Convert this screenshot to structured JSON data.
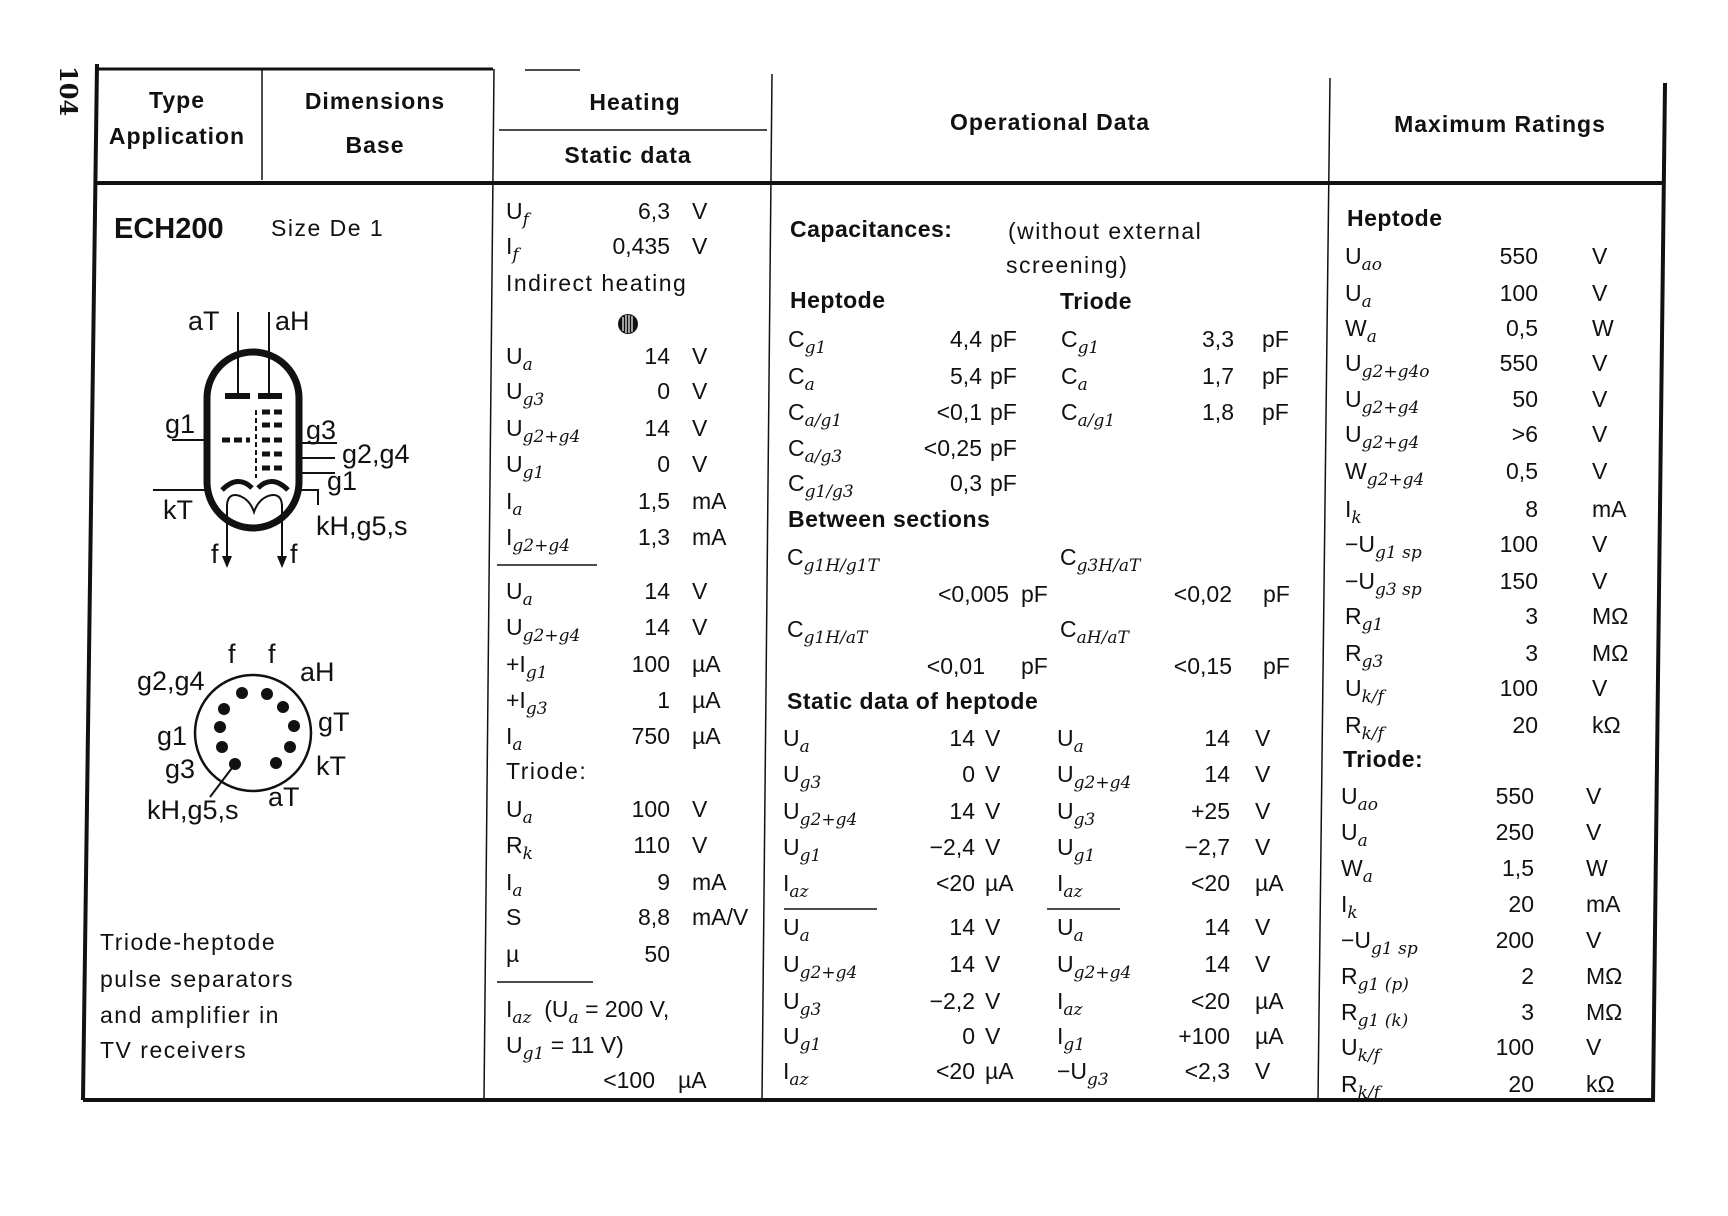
{
  "page_number": "104",
  "headers": {
    "type": "Type",
    "application": "Application",
    "dimensions": "Dimensions",
    "base": "Base",
    "heating": "Heating",
    "static_data": "Static data",
    "operational": "Operational Data",
    "maximum": "Maximum Ratings"
  },
  "tube": {
    "type": "ECH200",
    "size": "Size De 1",
    "application_lines": [
      "Triode-heptode",
      "pulse separators",
      "and amplifier in",
      "TV receivers"
    ],
    "symbol_labels": {
      "aT": "aT",
      "aH": "aH",
      "g1_left": "g1",
      "g3": "g3",
      "g2g4": "g2,g4",
      "g1_right": "g1",
      "kT": "kT",
      "kH": "kH,g5,s",
      "f1": "f",
      "f2": "f"
    },
    "base_labels": {
      "f1": "f",
      "f2": "f",
      "aH": "aH",
      "gT": "gT",
      "kT": "kT",
      "aT": "aT",
      "kH": "kH,g5,s",
      "g3": "g3",
      "g1": "g1",
      "g2g4": "g2,g4"
    }
  },
  "heating": {
    "rows": [
      {
        "label": "U",
        "sub": "f",
        "value": "6,3",
        "unit": "V"
      },
      {
        "label": "I",
        "sub": "f",
        "value": "0,435",
        "unit": "V"
      },
      {
        "note": "Indirect heating"
      },
      {
        "label": "U",
        "sub": "a",
        "value": "14",
        "unit": "V"
      },
      {
        "label": "U",
        "sub": "g3",
        "value": "0",
        "unit": "V"
      },
      {
        "label": "U",
        "sub": "g2+g4",
        "value": "14",
        "unit": "V"
      },
      {
        "label": "U",
        "sub": "g1",
        "value": "0",
        "unit": "V"
      },
      {
        "label": "I",
        "sub": "a",
        "value": "1,5",
        "unit": "mA"
      },
      {
        "label": "I",
        "sub": "g2+g4",
        "value": "1,3",
        "unit": "mA"
      },
      {
        "label": "U",
        "sub": "a",
        "value": "14",
        "unit": "V"
      },
      {
        "label": "U",
        "sub": "g2+g4",
        "value": "14",
        "unit": "V"
      },
      {
        "label": "+I",
        "sub": "g1",
        "value": "100",
        "unit": "µA"
      },
      {
        "label": "+I",
        "sub": "g3",
        "value": "1",
        "unit": "µA"
      },
      {
        "label": "I",
        "sub": "a",
        "value": "750",
        "unit": "µA"
      },
      {
        "note": "Triode:"
      },
      {
        "label": "U",
        "sub": "a",
        "value": "100",
        "unit": "V"
      },
      {
        "label": "R",
        "sub": "k",
        "value": "110",
        "unit": "V"
      },
      {
        "label": "I",
        "sub": "a",
        "value": "9",
        "unit": "mA"
      },
      {
        "label": "S",
        "sub": "",
        "value": "8,8",
        "unit": "mA/V"
      },
      {
        "label": "µ",
        "sub": "",
        "value": "50",
        "unit": ""
      }
    ],
    "iaz": {
      "label": "I",
      "sub": "az",
      "cond1": "(U",
      "cond1_sub": "a",
      "cond1_rest": " = 200 V,",
      "cond2": "U",
      "cond2_sub": "g1",
      "cond2_rest": " = 11 V)",
      "value": "<100",
      "unit": "µA"
    },
    "icon": "base-symbol-icon"
  },
  "operational": {
    "capacitances_title": "Capacitances:",
    "capacitances_note1": "(without external",
    "capacitances_note2": "screening)",
    "heptode_title": "Heptode",
    "triode_title": "Triode",
    "heptode_caps": [
      {
        "label": "C",
        "sub": "g1",
        "value": "4,4",
        "unit": "pF"
      },
      {
        "label": "C",
        "sub": "a",
        "value": "5,4",
        "unit": "pF"
      },
      {
        "label": "C",
        "sub": "a/g1",
        "value": "<0,1",
        "unit": "pF"
      },
      {
        "label": "C",
        "sub": "a/g3",
        "value": "<0,25",
        "unit": "pF"
      },
      {
        "label": "C",
        "sub": "g1/g3",
        "value": "0,3",
        "unit": "pF"
      }
    ],
    "triode_caps": [
      {
        "label": "C",
        "sub": "g1",
        "value": "3,3",
        "unit": "pF"
      },
      {
        "label": "C",
        "sub": "a",
        "value": "1,7",
        "unit": "pF"
      },
      {
        "label": "C",
        "sub": "a/g1",
        "value": "1,8",
        "unit": "pF"
      }
    ],
    "between_title": "Between sections",
    "between": [
      {
        "label": "C",
        "sub": "g1H/g1T",
        "value": "<0,005",
        "unit": "pF"
      },
      {
        "label": "C",
        "sub": "g3H/aT",
        "value": "<0,02",
        "unit": "pF"
      },
      {
        "label": "C",
        "sub": "g1H/aT",
        "value": "<0,01",
        "unit": "pF"
      },
      {
        "label": "C",
        "sub": "aH/aT",
        "value": "<0,15",
        "unit": "pF"
      }
    ],
    "static_title": "Static data of heptode",
    "static_left": [
      {
        "label": "U",
        "sub": "a",
        "value": "14",
        "unit": "V"
      },
      {
        "label": "U",
        "sub": "g3",
        "value": "0",
        "unit": "V"
      },
      {
        "label": "U",
        "sub": "g2+g4",
        "value": "14",
        "unit": "V"
      },
      {
        "label": "U",
        "sub": "g1",
        "value": "−2,4",
        "unit": "V"
      },
      {
        "label": "I",
        "sub": "az",
        "value": "<20",
        "unit": "µA"
      },
      {
        "label": "U",
        "sub": "a",
        "value": "14",
        "unit": "V"
      },
      {
        "label": "U",
        "sub": "g2+g4",
        "value": "14",
        "unit": "V"
      },
      {
        "label": "U",
        "sub": "g3",
        "value": "−2,2",
        "unit": "V"
      },
      {
        "label": "U",
        "sub": "g1",
        "value": "0",
        "unit": "V"
      },
      {
        "label": "I",
        "sub": "az",
        "value": "<20",
        "unit": "µA"
      }
    ],
    "static_right": [
      {
        "label": "U",
        "sub": "a",
        "value": "14",
        "unit": "V"
      },
      {
        "label": "U",
        "sub": "g2+g4",
        "value": "14",
        "unit": "V"
      },
      {
        "label": "U",
        "sub": "g3",
        "value": "+25",
        "unit": "V"
      },
      {
        "label": "U",
        "sub": "g1",
        "value": "−2,7",
        "unit": "V"
      },
      {
        "label": "I",
        "sub": "az",
        "value": "<20",
        "unit": "µA"
      },
      {
        "label": "U",
        "sub": "a",
        "value": "14",
        "unit": "V"
      },
      {
        "label": "U",
        "sub": "g2+g4",
        "value": "14",
        "unit": "V"
      },
      {
        "label": "I",
        "sub": "az",
        "value": "<20",
        "unit": "µA"
      },
      {
        "label": "I",
        "sub": "g1",
        "value": "+100",
        "unit": "µA"
      },
      {
        "label": "−U",
        "sub": "g3",
        "value": "<2,3",
        "unit": "V"
      }
    ]
  },
  "maximum": {
    "heptode_title": "Heptode",
    "heptode": [
      {
        "label": "U",
        "sub": "ao",
        "value": "550",
        "unit": "V"
      },
      {
        "label": "U",
        "sub": "a",
        "value": "100",
        "unit": "V"
      },
      {
        "label": "W",
        "sub": "a",
        "value": "0,5",
        "unit": "W"
      },
      {
        "label": "U",
        "sub": "g2+g4o",
        "value": "550",
        "unit": "V"
      },
      {
        "label": "U",
        "sub": "g2+g4",
        "value": "50",
        "unit": "V"
      },
      {
        "label": "U",
        "sub": "g2+g4",
        "value": ">6",
        "unit": "V"
      },
      {
        "label": "W",
        "sub": "g2+g4",
        "value": "0,5",
        "unit": "V"
      },
      {
        "label": "I",
        "sub": "k",
        "value": "8",
        "unit": "mA"
      },
      {
        "label": "−U",
        "sub": "g1 sp",
        "value": "100",
        "unit": "V"
      },
      {
        "label": "−U",
        "sub": "g3 sp",
        "value": "150",
        "unit": "V"
      },
      {
        "label": "R",
        "sub": "g1",
        "value": "3",
        "unit": "MΩ"
      },
      {
        "label": "R",
        "sub": "g3",
        "value": "3",
        "unit": "MΩ"
      },
      {
        "label": "U",
        "sub": "k/f",
        "value": "100",
        "unit": "V"
      },
      {
        "label": "R",
        "sub": "k/f",
        "value": "20",
        "unit": "kΩ"
      }
    ],
    "triode_title": "Triode:",
    "triode": [
      {
        "label": "U",
        "sub": "ao",
        "value": "550",
        "unit": "V"
      },
      {
        "label": "U",
        "sub": "a",
        "value": "250",
        "unit": "V"
      },
      {
        "label": "W",
        "sub": "a",
        "value": "1,5",
        "unit": "W"
      },
      {
        "label": "I",
        "sub": "k",
        "value": "20",
        "unit": "mA"
      },
      {
        "label": "−U",
        "sub": "g1 sp",
        "value": "200",
        "unit": "V"
      },
      {
        "label": "R",
        "sub": "g1 (p)",
        "value": "2",
        "unit": "MΩ"
      },
      {
        "label": "R",
        "sub": "g1 (k)",
        "value": "3",
        "unit": "MΩ"
      },
      {
        "label": "U",
        "sub": "k/f",
        "value": "100",
        "unit": "V"
      },
      {
        "label": "R",
        "sub": "k/f",
        "value": "20",
        "unit": "kΩ"
      }
    ]
  }
}
